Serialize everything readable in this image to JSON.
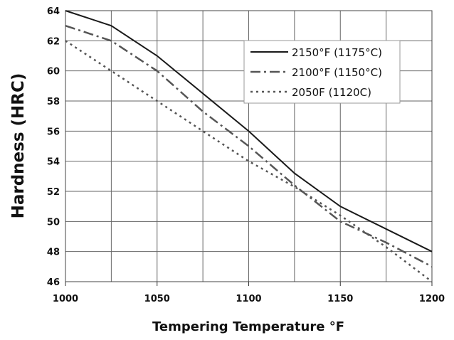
{
  "chart_data": {
    "type": "line",
    "title": "",
    "xlabel": "Tempering Temperature °F",
    "ylabel": "Hardness (HRC)",
    "xlim": [
      1000,
      1200
    ],
    "ylim": [
      46,
      64
    ],
    "x_ticks": [
      1000,
      1050,
      1100,
      1150,
      1200
    ],
    "y_ticks": [
      46,
      48,
      50,
      52,
      54,
      56,
      58,
      60,
      62,
      64
    ],
    "grid": true,
    "legend_position": "top-right",
    "x": [
      1000,
      1025,
      1050,
      1075,
      1100,
      1125,
      1150,
      1175,
      1200
    ],
    "series": [
      {
        "name": "2150°F (1175°C)",
        "style": "solid",
        "color": "#1a1a1a",
        "values": [
          64,
          63,
          61,
          58.5,
          56,
          53.2,
          51,
          49.5,
          48
        ]
      },
      {
        "name": "2100°F (1150°C)",
        "style": "dash-dot",
        "color": "#555555",
        "values": [
          63,
          62,
          60,
          57.3,
          55,
          52.4,
          50,
          48.6,
          47
        ]
      },
      {
        "name": "2050F (1120C)",
        "style": "dotted",
        "color": "#555555",
        "values": [
          62,
          60,
          58,
          56,
          54,
          52.3,
          50.4,
          48.3,
          46
        ]
      }
    ]
  }
}
